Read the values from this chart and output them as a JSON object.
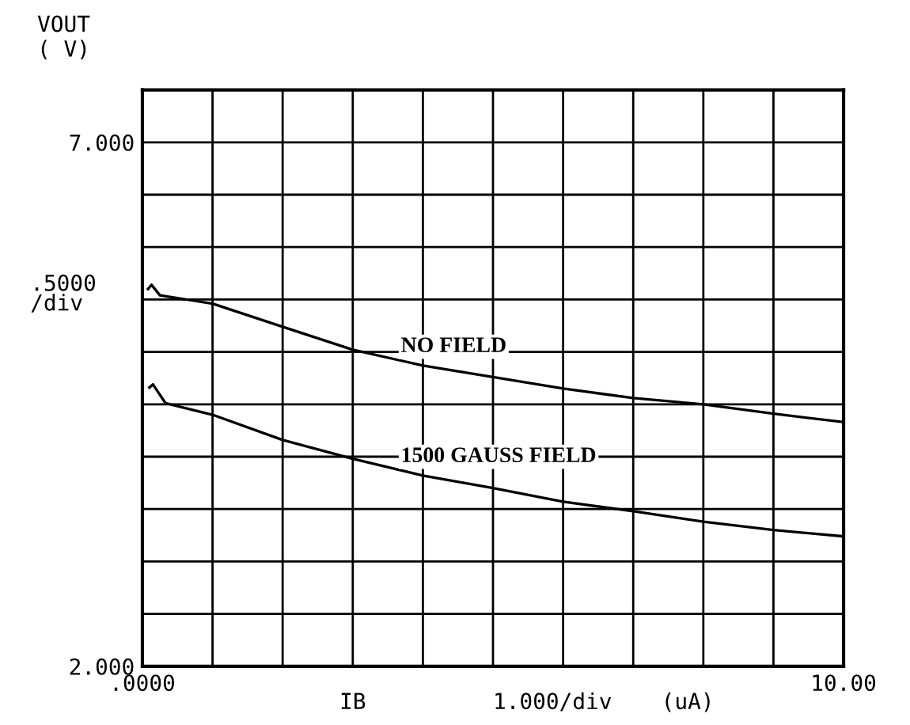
{
  "chart_data": {
    "type": "line",
    "ylabel": "VOUT\n( V)",
    "xlabel": "IB",
    "annotations": [
      ".5000\n/div",
      "1.000/div",
      "(uA)"
    ],
    "xlim": [
      0,
      10
    ],
    "ylim": [
      2,
      7.5
    ],
    "xticks": [
      {
        "value": 0,
        "label": ".0000"
      },
      {
        "value": 1,
        "label": null
      },
      {
        "value": 2,
        "label": null
      },
      {
        "value": 3,
        "label": null
      },
      {
        "value": 4,
        "label": null
      },
      {
        "value": 5,
        "label": null
      },
      {
        "value": 6,
        "label": null
      },
      {
        "value": 7,
        "label": null
      },
      {
        "value": 8,
        "label": null
      },
      {
        "value": 9,
        "label": null
      },
      {
        "value": 10,
        "label": "10.00"
      }
    ],
    "yticks": [
      {
        "value": 2,
        "label": "2.000"
      },
      {
        "value": 2.5,
        "label": null
      },
      {
        "value": 3,
        "label": null
      },
      {
        "value": 3.5,
        "label": null
      },
      {
        "value": 4,
        "label": null
      },
      {
        "value": 4.5,
        "label": null
      },
      {
        "value": 5,
        "label": null
      },
      {
        "value": 5.5,
        "label": null
      },
      {
        "value": 6,
        "label": null
      },
      {
        "value": 6.5,
        "label": null
      },
      {
        "value": 7,
        "label": "7.000"
      }
    ],
    "grid": true,
    "series": [
      {
        "name": "NO FIELD",
        "color": "#000000",
        "x": [
          0.08,
          0.13,
          0.25,
          1,
          2,
          3,
          4,
          5,
          6,
          7,
          8,
          9,
          10
        ],
        "values": [
          5.6,
          5.64,
          5.54,
          5.46,
          5.24,
          5.02,
          4.87,
          4.76,
          4.65,
          4.56,
          4.5,
          4.41,
          4.33
        ]
      },
      {
        "name": "1500 GAUSS FIELD",
        "color": "#000000",
        "x": [
          0.1,
          0.15,
          0.33,
          1,
          2,
          3,
          4,
          5,
          6,
          7,
          8,
          9,
          10
        ],
        "values": [
          4.66,
          4.69,
          4.51,
          4.4,
          4.16,
          3.98,
          3.82,
          3.7,
          3.57,
          3.48,
          3.38,
          3.3,
          3.24
        ]
      }
    ]
  }
}
